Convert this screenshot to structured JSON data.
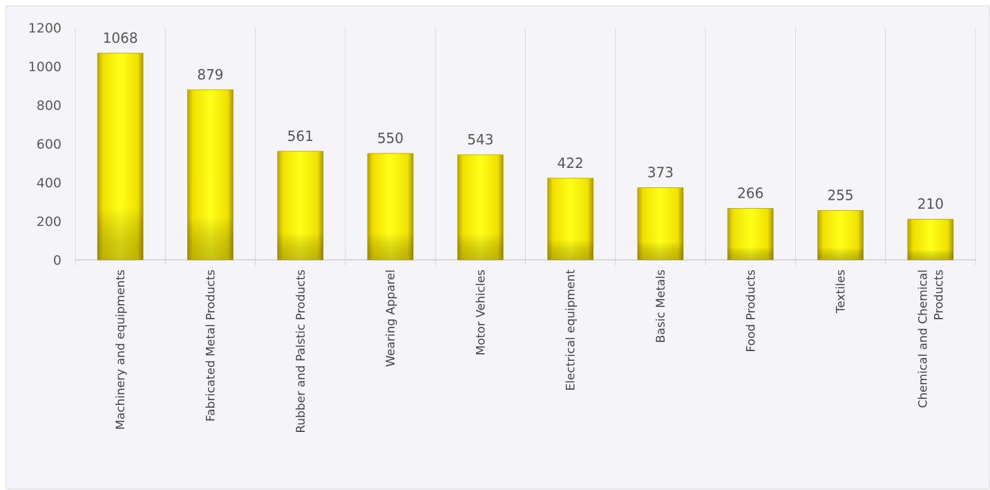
{
  "chart_data": {
    "type": "bar",
    "title": "",
    "xlabel": "",
    "ylabel": "",
    "ylim": [
      0,
      1200
    ],
    "yticks": [
      0,
      200,
      400,
      600,
      800,
      1000,
      1200
    ],
    "grid": "vertical category separators",
    "legend": "none",
    "bar_color": "#f2e600",
    "categories": [
      "Machinery and equipments",
      "Fabricated Metal Products",
      "Rubber and Palstic Products",
      "Wearing Apparel",
      "Motor Vehicles",
      "Electrical equipment",
      "Basic Metals",
      "Food Products",
      "Textiles",
      "Chemical and Chemical Products"
    ],
    "category_lines": [
      [
        "Machinery and equipments"
      ],
      [
        "Fabricated Metal Products"
      ],
      [
        "Rubber and Palstic Products"
      ],
      [
        "Wearing Apparel"
      ],
      [
        "Motor Vehicles"
      ],
      [
        "Electrical equipment"
      ],
      [
        "Basic Metals"
      ],
      [
        "Food Products"
      ],
      [
        "Textiles"
      ],
      [
        "Chemical and Chemical",
        "Products"
      ]
    ],
    "values": [
      1068,
      879,
      561,
      550,
      543,
      422,
      373,
      266,
      255,
      210
    ]
  }
}
